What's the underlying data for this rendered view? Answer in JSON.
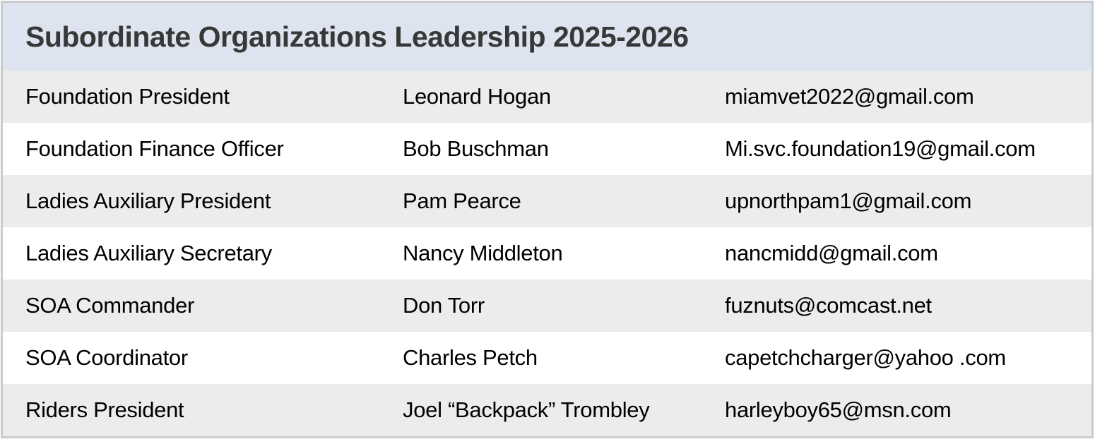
{
  "title": "Subordinate Organizations Leadership 2025-2026",
  "colors": {
    "title_bar_background": "#dde4ef",
    "title_text": "#383838",
    "row_alternate_background": "#ececec",
    "row_background": "#ffffff",
    "card_border": "#c8cccf",
    "body_text": "#000000"
  },
  "table": {
    "rows": [
      {
        "role": "Foundation President",
        "name": "Leonard Hogan",
        "email": "miamvet2022@gmail.com"
      },
      {
        "role": "Foundation Finance Officer",
        "name": "Bob Buschman",
        "email": "Mi.svc.foundation19@gmail.com"
      },
      {
        "role": "Ladies Auxiliary President",
        "name": "Pam Pearce",
        "email": "upnorthpam1@gmail.com"
      },
      {
        "role": "Ladies Auxiliary Secretary",
        "name": "Nancy Middleton",
        "email": "nancmidd@gmail.com"
      },
      {
        "role": "SOA Commander",
        "name": "Don Torr",
        "email": "fuznuts@comcast.net"
      },
      {
        "role": "SOA Coordinator",
        "name": "Charles Petch",
        "email": "capetchcharger@yahoo .com"
      },
      {
        "role": "Riders President",
        "name": "Joel “Backpack” Trombley",
        "email": "harleyboy65@msn.com"
      }
    ]
  }
}
